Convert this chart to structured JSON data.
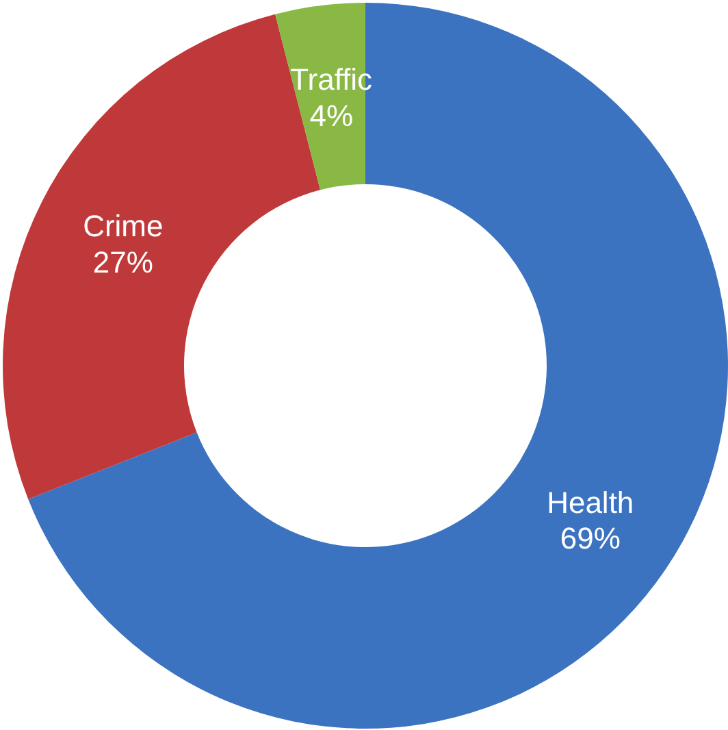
{
  "chart_data": {
    "type": "donut",
    "categories": [
      "Health",
      "Crime",
      "Traffic"
    ],
    "values": [
      69,
      27,
      4
    ],
    "value_labels": [
      "69%",
      "27%",
      "4%"
    ],
    "colors": [
      "#3b73c0",
      "#c0393a",
      "#8ab845"
    ]
  }
}
